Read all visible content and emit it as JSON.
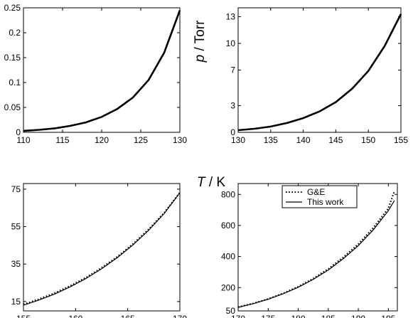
{
  "figure": {
    "shared_xlabel": {
      "italic": "T",
      "rest": " / K"
    },
    "shared_ylabel": {
      "italic": "p",
      "rest": " / Torr"
    }
  },
  "chart_data": [
    {
      "type": "line",
      "panel": "top-left",
      "xlim": [
        110,
        130
      ],
      "ylim": [
        0,
        0.25
      ],
      "xticks": [
        "110",
        "115",
        "120",
        "125",
        "130"
      ],
      "yticks": [
        "0",
        "0.05",
        "0.1",
        "0.15",
        "0.2",
        "0.25"
      ],
      "grid": false,
      "series": [
        {
          "style": "solid",
          "color": "#000000",
          "x": [
            110,
            112,
            114,
            116,
            118,
            120,
            122,
            124,
            126,
            128,
            130
          ],
          "y": [
            0.003,
            0.005,
            0.008,
            0.013,
            0.02,
            0.031,
            0.047,
            0.07,
            0.105,
            0.16,
            0.245
          ]
        }
      ]
    },
    {
      "type": "line",
      "panel": "top-right",
      "xlim": [
        130,
        155
      ],
      "ylim": [
        0,
        14
      ],
      "xticks": [
        "130",
        "135",
        "140",
        "145",
        "150",
        "155"
      ],
      "yticks": [
        "0",
        "3",
        "7",
        "10",
        "13"
      ],
      "grid": false,
      "series": [
        {
          "style": "solid",
          "color": "#000000",
          "x": [
            130,
            132.5,
            135,
            137.5,
            140,
            142.5,
            145,
            147.5,
            150,
            152.5,
            155
          ],
          "y": [
            0.24,
            0.4,
            0.65,
            1.05,
            1.6,
            2.35,
            3.4,
            4.9,
            6.9,
            9.7,
            13.3
          ]
        }
      ]
    },
    {
      "type": "line",
      "panel": "bottom-left",
      "xlim": [
        155,
        170
      ],
      "ylim": [
        10,
        78
      ],
      "xticks": [
        "155",
        "160",
        "165",
        "170"
      ],
      "yticks": [
        "15",
        "35",
        "55",
        "75"
      ],
      "grid": false,
      "series": [
        {
          "name": "G&E",
          "style": "dotted",
          "color": "#000000",
          "x": [
            155,
            156.5,
            158,
            159.5,
            161,
            162.5,
            164,
            165.5,
            167,
            168.5,
            170
          ],
          "y": [
            13.5,
            16.3,
            19.5,
            23.4,
            27.8,
            33.0,
            38.9,
            45.7,
            53.5,
            62.4,
            73.2
          ]
        },
        {
          "name": "This work",
          "style": "solid",
          "color": "#000000",
          "x": [
            155,
            156.5,
            158,
            159.5,
            161,
            162.5,
            164,
            165.5,
            167,
            168.5,
            170
          ],
          "y": [
            13.0,
            15.8,
            19.0,
            22.9,
            27.3,
            32.5,
            38.4,
            45.2,
            53.0,
            62.0,
            73.0
          ]
        }
      ]
    },
    {
      "type": "line",
      "panel": "bottom-right",
      "xlim": [
        170,
        196.5
      ],
      "ylim": [
        50,
        870
      ],
      "xticks": [
        "170",
        "175",
        "180",
        "185",
        "190",
        "195"
      ],
      "yticks": [
        "50",
        "200",
        "400",
        "600",
        "800"
      ],
      "grid": false,
      "legend": {
        "position": "top-right",
        "entries": [
          "G&E",
          "This work"
        ]
      },
      "series": [
        {
          "name": "G&E",
          "style": "dotted",
          "color": "#000000",
          "x": [
            170,
            172.5,
            175,
            177.5,
            180,
            182.5,
            185,
            187.5,
            190,
            192.5,
            195,
            196
          ],
          "y": [
            74,
            98,
            127,
            163,
            206,
            258,
            320,
            395,
            480,
            585,
            710,
            820
          ]
        },
        {
          "name": "This work",
          "style": "solid",
          "color": "#000000",
          "x": [
            170,
            172.5,
            175,
            177.5,
            180,
            182.5,
            185,
            187.5,
            190,
            192.5,
            195,
            196
          ],
          "y": [
            73,
            96,
            125,
            160,
            202,
            253,
            313,
            386,
            470,
            572,
            695,
            760
          ]
        }
      ]
    }
  ]
}
